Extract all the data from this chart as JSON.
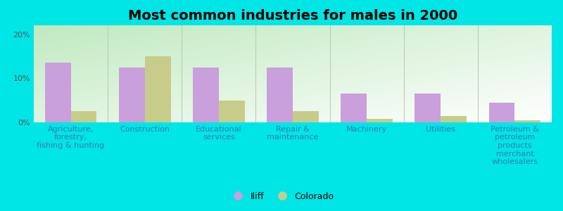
{
  "title": "Most common industries for males in 2000",
  "categories": [
    "Agriculture,\nforestry,\nfishing & hunting",
    "Construction",
    "Educational\nservices",
    "Repair &\nmaintenance",
    "Machinery",
    "Utilities",
    "Petroleum &\npetroleum\nproducts\nmerchant\nwholesalers"
  ],
  "iliff_values": [
    13.5,
    12.5,
    12.5,
    12.5,
    6.5,
    6.5,
    4.5
  ],
  "colorado_values": [
    2.5,
    15.0,
    5.0,
    2.5,
    0.8,
    1.5,
    0.5
  ],
  "iliff_color": "#c9a0dc",
  "colorado_color": "#c8cc8a",
  "outer_bg_color": "#00e5e5",
  "gradient_colors": [
    "#c8eec8",
    "#f0f8f0",
    "#f8fef8"
  ],
  "ylim": [
    0,
    22
  ],
  "yticks": [
    0,
    10,
    20
  ],
  "ytick_labels": [
    "0%",
    "10%",
    "20%"
  ],
  "title_fontsize": 14,
  "axis_tick_fontsize": 8,
  "x_label_color": "#3a7ab8",
  "y_label_color": "#555555",
  "legend_labels": [
    "Iliff",
    "Colorado"
  ],
  "bar_width": 0.35,
  "separator_color": "#bbccbb",
  "baseline_color": "#aaaaaa"
}
